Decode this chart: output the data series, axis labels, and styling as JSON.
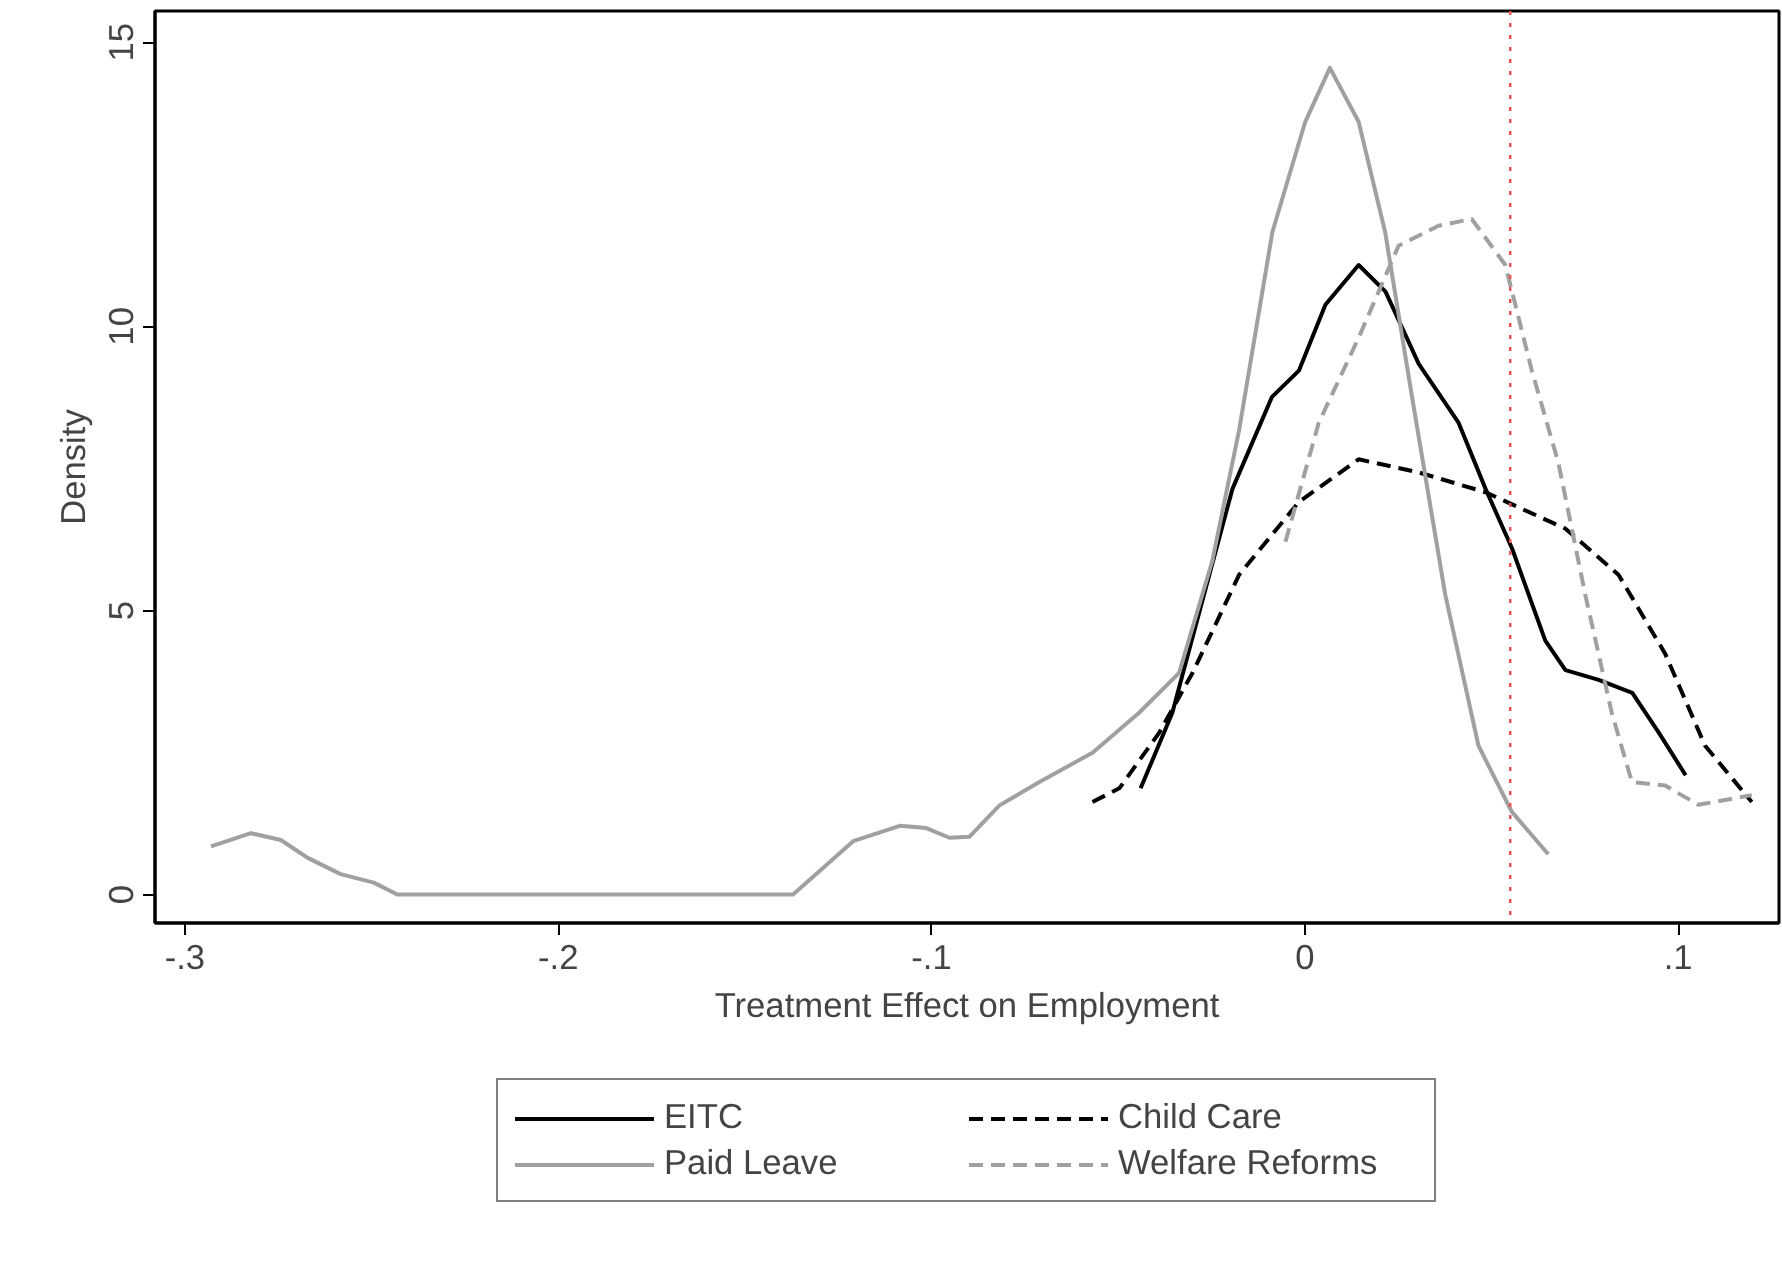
{
  "chart_data": {
    "type": "line",
    "xlabel": "Treatment Effect on Employment",
    "ylabel": "Density",
    "xlim": [
      -0.308,
      0.127
    ],
    "ylim": [
      -0.5,
      15.55
    ],
    "xticks": [
      {
        "value": -0.3,
        "label": "-.3"
      },
      {
        "value": -0.2,
        "label": "-.2"
      },
      {
        "value": -0.1,
        "label": "-.1"
      },
      0,
      {
        "value": 0.1,
        "label": ".1"
      }
    ],
    "yticks": [
      0,
      5,
      10,
      15
    ],
    "grid": false,
    "legend": "bottom",
    "marker": "none",
    "ref_lines": [
      {
        "axis": "x",
        "value": 0.055,
        "label": null,
        "color": "#f05050",
        "line_style": "dotted"
      }
    ],
    "series": [
      {
        "name": "EITC",
        "color": "#000000",
        "line_style": "solid",
        "x": [
          -0.044,
          -0.0355,
          -0.0284,
          -0.0194,
          -0.0088,
          -0.0016,
          0.0055,
          0.0144,
          0.0216,
          0.0305,
          0.0412,
          0.0484,
          0.0555,
          0.0644,
          0.0698,
          0.0787,
          0.0877,
          0.0948,
          0.102
        ],
        "values": [
          1.87,
          3.2,
          4.94,
          7.14,
          8.76,
          9.22,
          10.38,
          11.08,
          10.61,
          9.34,
          8.3,
          7.14,
          6.09,
          4.47,
          3.95,
          3.78,
          3.55,
          2.85,
          2.1
        ]
      },
      {
        "name": "Child Care",
        "color": "#000000",
        "line_style": "dashed",
        "x": [
          -0.0569,
          -0.0497,
          -0.039,
          -0.0301,
          -0.0176,
          -0.0016,
          0.0144,
          0.0305,
          0.0484,
          0.0698,
          0.084,
          0.0965,
          0.1072,
          0.1197
        ],
        "values": [
          1.63,
          1.87,
          2.85,
          3.9,
          5.63,
          6.91,
          7.66,
          7.43,
          7.08,
          6.44,
          5.63,
          4.24,
          2.62,
          1.63
        ]
      },
      {
        "name": "Paid Leave",
        "color": "#a0a0a0",
        "line_style": "solid",
        "x": [
          -0.293,
          -0.2823,
          -0.2743,
          -0.2672,
          -0.2583,
          -0.2494,
          -0.2431,
          -0.1371,
          -0.1299,
          -0.121,
          -0.1085,
          -0.1014,
          -0.0952,
          -0.0898,
          -0.0818,
          -0.0711,
          -0.0568,
          -0.0444,
          -0.0337,
          -0.0248,
          -0.0176,
          -0.0087,
          0.0001,
          0.0067,
          0.0144,
          0.0215,
          0.0287,
          0.0376,
          0.0465,
          0.0554,
          0.0652
        ],
        "values": [
          0.85,
          1.08,
          0.96,
          0.65,
          0.36,
          0.21,
          0,
          0,
          0.42,
          0.94,
          1.21,
          1.17,
          1.0,
          1.02,
          1.57,
          1.98,
          2.5,
          3.2,
          3.9,
          5.87,
          8.18,
          11.66,
          13.6,
          14.55,
          13.6,
          11.66,
          8.76,
          5.28,
          2.62,
          1.46,
          0.71
        ]
      },
      {
        "name": "Welfare Reforms",
        "color": "#a0a0a0",
        "line_style": "dashed",
        "x": [
          -0.0052,
          0.0037,
          0.0144,
          0.0251,
          0.0358,
          0.0447,
          0.0537,
          0.0608,
          0.0679,
          0.0751,
          0.0822,
          0.0876,
          0.0965,
          0.1054,
          0.1197
        ],
        "values": [
          6.21,
          8.3,
          9.8,
          11.42,
          11.77,
          11.89,
          11.08,
          9.22,
          7.6,
          5.28,
          3.2,
          1.98,
          1.92,
          1.58,
          1.75
        ]
      }
    ]
  }
}
